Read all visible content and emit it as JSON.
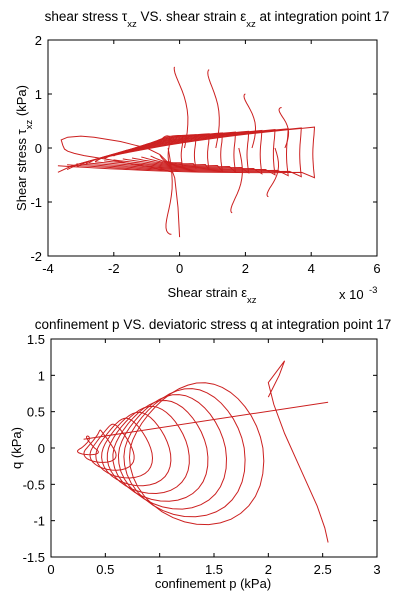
{
  "chart_data": [
    {
      "type": "line",
      "title": {
        "parts": [
          {
            "t": "shear stress "
          },
          {
            "t": "τ"
          },
          {
            "t": "xz",
            "sub": true
          },
          {
            "t": " VS. shear strain "
          },
          {
            "t": "ε"
          },
          {
            "t": "xz",
            "sub": true
          },
          {
            "t": " at integration point 17"
          }
        ]
      },
      "xlabel": {
        "parts": [
          {
            "t": "Shear strain "
          },
          {
            "t": "ε"
          },
          {
            "t": "xz",
            "sub": true
          }
        ]
      },
      "ylabel": {
        "parts": [
          {
            "t": "Shear stress "
          },
          {
            "t": "τ"
          },
          {
            "t": "xz",
            "sub": true
          },
          {
            "t": " (kPa)"
          }
        ]
      },
      "x_exponent_label": "x 10",
      "x_exponent_power": "-3",
      "xlim": [
        -4,
        6
      ],
      "ylim": [
        -2,
        2
      ],
      "xticks": [
        "-4",
        "-2",
        "0",
        "2",
        "4",
        "6"
      ],
      "yticks": [
        "-2",
        "-1",
        "0",
        "1",
        "2"
      ],
      "grid": false,
      "line_color": "#cc2020",
      "series": [
        {
          "x": [
            -0.2,
            -0.9,
            -1.6,
            -2.1,
            -2.5,
            -2.9,
            -3.2,
            -3.4,
            -3.5,
            -3.55,
            -3.6,
            -3.4,
            -3.0,
            -2.6,
            -2.2,
            -1.8,
            -1.4,
            -1.0,
            -0.6,
            -0.3,
            -0.15,
            -0.05,
            0.0
          ],
          "y": [
            -0.45,
            -0.35,
            -0.28,
            -0.22,
            -0.18,
            -0.14,
            -0.1,
            -0.06,
            -0.02,
            0.05,
            0.15,
            0.2,
            0.22,
            0.2,
            0.16,
            0.12,
            0.06,
            0.0,
            -0.12,
            -0.3,
            -0.55,
            -1.1,
            -1.65
          ]
        }
      ]
    },
    {
      "type": "line",
      "title": {
        "parts": [
          {
            "t": "confinement p VS. deviatoric stress q at integration point 17"
          }
        ]
      },
      "xlabel": {
        "parts": [
          {
            "t": "confinement p (kPa)"
          }
        ]
      },
      "ylabel": {
        "parts": [
          {
            "t": "q (kPa)"
          }
        ]
      },
      "xlim": [
        0,
        3
      ],
      "ylim": [
        -1.5,
        1.5
      ],
      "xticks": [
        "0",
        "0.5",
        "1",
        "1.5",
        "2",
        "2.5",
        "3"
      ],
      "yticks": [
        "-1.5",
        "-1",
        "-0.5",
        "0",
        "0.5",
        "1",
        "1.5"
      ],
      "grid": false,
      "line_color": "#cc2020",
      "series": [
        {
          "x": [
            2.55,
            2.52,
            2.45,
            2.3,
            2.15,
            2.05,
            2.0,
            2.1,
            2.15,
            2.1,
            2.0
          ],
          "y": [
            -1.3,
            -1.1,
            -0.8,
            -0.3,
            0.2,
            0.6,
            0.9,
            1.1,
            1.2,
            1.0,
            0.7
          ]
        }
      ]
    }
  ]
}
